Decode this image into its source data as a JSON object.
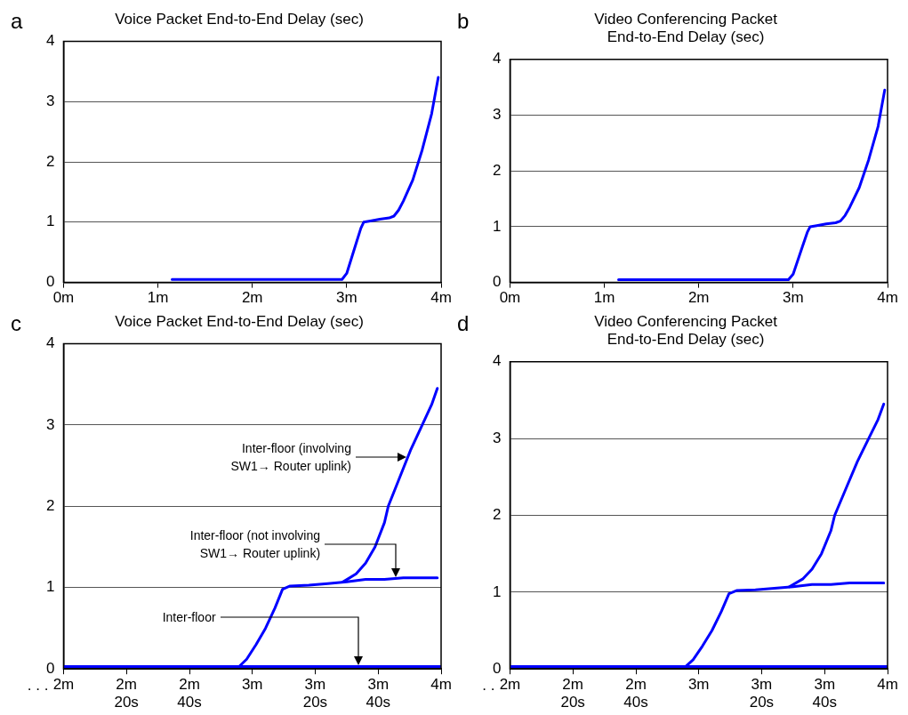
{
  "chart_data": [
    {
      "type": "line",
      "title": "Voice Packet End-to-End Delay (sec)",
      "annotations": [
        "a"
      ],
      "xlim": [
        0,
        4
      ],
      "xticks": [
        {
          "value": 0,
          "label": "0m"
        },
        {
          "value": 1,
          "label": "1m"
        },
        {
          "value": 2,
          "label": "2m"
        },
        {
          "value": 3,
          "label": "3m"
        },
        {
          "value": 4,
          "label": "4m"
        }
      ],
      "ylim": [
        0,
        4
      ],
      "yticks": [
        0,
        1,
        2,
        3,
        4
      ],
      "grid": "y",
      "legend": false,
      "marker": "none",
      "line_style": "solid",
      "series": [
        {
          "color": "#0000ff",
          "x": [
            1.15,
            2.95,
            3.0,
            3.05,
            3.1,
            3.15,
            3.18,
            3.25,
            3.35,
            3.45,
            3.5,
            3.55,
            3.6,
            3.7,
            3.8,
            3.9,
            3.97
          ],
          "values": [
            0.05,
            0.05,
            0.15,
            0.4,
            0.65,
            0.9,
            1.0,
            1.02,
            1.05,
            1.07,
            1.1,
            1.2,
            1.35,
            1.7,
            2.2,
            2.8,
            3.4
          ]
        }
      ]
    },
    {
      "type": "line",
      "title": "Video Conferencing Packet\nEnd-to-End Delay (sec)",
      "annotations": [
        "b"
      ],
      "xlim": [
        0,
        4
      ],
      "xticks": [
        {
          "value": 0,
          "label": "0m"
        },
        {
          "value": 1,
          "label": "1m"
        },
        {
          "value": 2,
          "label": "2m"
        },
        {
          "value": 3,
          "label": "3m"
        },
        {
          "value": 4,
          "label": "4m"
        }
      ],
      "ylim": [
        0,
        4
      ],
      "yticks": [
        0,
        1,
        2,
        3,
        4
      ],
      "grid": "y",
      "legend": false,
      "marker": "none",
      "line_style": "solid",
      "series": [
        {
          "color": "#0000ff",
          "x": [
            1.15,
            2.95,
            3.0,
            3.05,
            3.1,
            3.15,
            3.18,
            3.25,
            3.35,
            3.45,
            3.5,
            3.55,
            3.6,
            3.7,
            3.8,
            3.9,
            3.97
          ],
          "values": [
            0.05,
            0.05,
            0.15,
            0.4,
            0.65,
            0.9,
            1.0,
            1.02,
            1.05,
            1.07,
            1.1,
            1.2,
            1.35,
            1.7,
            2.2,
            2.8,
            3.45
          ]
        }
      ]
    },
    {
      "type": "line",
      "title": "Voice Packet End-to-End Delay (sec)",
      "xlim": [
        2,
        4
      ],
      "xticks": [
        {
          "value": 2,
          "label": "2m"
        },
        {
          "value": 2.333,
          "label": "2m\n20s"
        },
        {
          "value": 2.667,
          "label": "2m\n40s"
        },
        {
          "value": 3,
          "label": "3m"
        },
        {
          "value": 3.333,
          "label": "3m\n20s"
        },
        {
          "value": 3.667,
          "label": "3m\n40s"
        },
        {
          "value": 4,
          "label": "4m"
        }
      ],
      "ylim": [
        0,
        4
      ],
      "yticks": [
        0,
        1,
        2,
        3,
        4
      ],
      "grid": "y",
      "legend": false,
      "marker": "none",
      "line_style": "solid",
      "annotations": [
        "c",
        ". . .",
        "Inter-floor (involving\nSW1→ Router uplink)",
        "Inter-floor (not involving\nSW1→ Router uplink)",
        "Inter-floor"
      ],
      "series": [
        {
          "color": "#0000ff",
          "x": [
            2.0,
            4.0
          ],
          "values": [
            0.03,
            0.03
          ]
        },
        {
          "color": "#0000ff",
          "x": [
            2.0,
            2.93,
            2.97,
            3.02,
            3.07,
            3.12,
            3.16,
            3.2,
            3.3,
            3.4,
            3.5,
            3.6,
            3.7,
            3.8,
            3.9,
            3.98
          ],
          "values": [
            0.03,
            0.03,
            0.12,
            0.3,
            0.5,
            0.75,
            0.98,
            1.02,
            1.03,
            1.05,
            1.07,
            1.1,
            1.1,
            1.12,
            1.12,
            1.12
          ]
        },
        {
          "color": "#0000ff",
          "x": [
            3.48,
            3.55,
            3.6,
            3.65,
            3.7,
            3.72,
            3.78,
            3.84,
            3.9,
            3.95,
            3.98
          ],
          "values": [
            1.07,
            1.17,
            1.3,
            1.5,
            1.8,
            2.0,
            2.35,
            2.7,
            3.0,
            3.25,
            3.45
          ]
        }
      ]
    },
    {
      "type": "line",
      "title": "Video Conferencing Packet\nEnd-to-End Delay (sec)",
      "annotations": [
        "d",
        ". ."
      ],
      "xlim": [
        2,
        4
      ],
      "xticks": [
        {
          "value": 2,
          "label": "2m"
        },
        {
          "value": 2.333,
          "label": "2m\n20s"
        },
        {
          "value": 2.667,
          "label": "2m\n40s"
        },
        {
          "value": 3,
          "label": "3m"
        },
        {
          "value": 3.333,
          "label": "3m\n20s"
        },
        {
          "value": 3.667,
          "label": "3m\n40s"
        },
        {
          "value": 4,
          "label": "4m"
        }
      ],
      "ylim": [
        0,
        4
      ],
      "yticks": [
        0,
        1,
        2,
        3,
        4
      ],
      "grid": "y",
      "legend": false,
      "marker": "none",
      "line_style": "solid",
      "series": [
        {
          "color": "#0000ff",
          "x": [
            2.0,
            4.0
          ],
          "values": [
            0.03,
            0.03
          ]
        },
        {
          "color": "#0000ff",
          "x": [
            2.0,
            2.93,
            2.97,
            3.02,
            3.07,
            3.12,
            3.16,
            3.2,
            3.3,
            3.4,
            3.5,
            3.6,
            3.7,
            3.8,
            3.9,
            3.98
          ],
          "values": [
            0.03,
            0.03,
            0.12,
            0.3,
            0.5,
            0.75,
            0.98,
            1.02,
            1.03,
            1.05,
            1.07,
            1.1,
            1.1,
            1.12,
            1.12,
            1.12
          ]
        },
        {
          "color": "#0000ff",
          "x": [
            3.48,
            3.55,
            3.6,
            3.65,
            3.7,
            3.72,
            3.78,
            3.84,
            3.9,
            3.95,
            3.98
          ],
          "values": [
            1.07,
            1.17,
            1.3,
            1.5,
            1.8,
            2.0,
            2.35,
            2.7,
            3.0,
            3.25,
            3.45
          ]
        }
      ]
    }
  ]
}
